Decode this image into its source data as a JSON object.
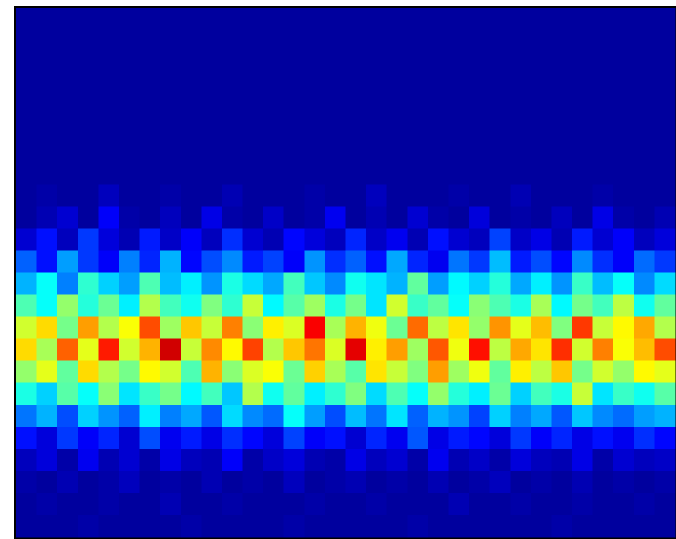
{
  "chart_data": {
    "type": "heatmap",
    "colormap": "jet",
    "zlim": [
      0,
      100
    ],
    "z": [
      [
        3,
        3,
        3,
        3,
        3,
        3,
        3,
        3,
        3,
        3,
        3,
        3,
        3,
        3,
        3,
        3,
        3,
        3,
        3,
        3,
        3,
        3,
        3,
        3,
        3,
        3,
        3,
        3,
        3,
        3,
        3,
        3
      ],
      [
        3,
        3,
        3,
        3,
        3,
        3,
        3,
        3,
        3,
        3,
        3,
        3,
        3,
        3,
        3,
        3,
        3,
        3,
        3,
        3,
        3,
        3,
        3,
        3,
        3,
        3,
        3,
        3,
        3,
        3,
        3,
        3
      ],
      [
        3,
        3,
        3,
        3,
        3,
        3,
        3,
        3,
        3,
        3,
        3,
        3,
        3,
        3,
        3,
        3,
        3,
        3,
        3,
        3,
        3,
        3,
        3,
        3,
        3,
        3,
        3,
        3,
        3,
        3,
        3,
        3
      ],
      [
        3,
        3,
        3,
        3,
        3,
        3,
        3,
        3,
        3,
        3,
        3,
        3,
        3,
        3,
        3,
        3,
        3,
        3,
        3,
        3,
        3,
        3,
        3,
        3,
        3,
        3,
        3,
        3,
        3,
        3,
        3,
        3
      ],
      [
        3,
        3,
        3,
        3,
        3,
        3,
        3,
        3,
        3,
        3,
        3,
        3,
        3,
        3,
        3,
        3,
        3,
        3,
        3,
        3,
        3,
        3,
        3,
        3,
        3,
        3,
        3,
        3,
        3,
        3,
        3,
        3
      ],
      [
        3,
        3,
        3,
        3,
        3,
        3,
        3,
        3,
        3,
        3,
        3,
        3,
        3,
        3,
        3,
        3,
        3,
        3,
        3,
        3,
        3,
        3,
        3,
        3,
        3,
        3,
        3,
        3,
        3,
        3,
        3,
        3
      ],
      [
        3,
        3,
        3,
        3,
        3,
        3,
        3,
        3,
        3,
        3,
        3,
        3,
        3,
        3,
        3,
        3,
        3,
        3,
        3,
        3,
        3,
        3,
        3,
        3,
        3,
        3,
        3,
        3,
        3,
        3,
        3,
        3
      ],
      [
        3,
        3,
        3,
        3,
        3,
        3,
        3,
        3,
        3,
        3,
        3,
        3,
        3,
        3,
        3,
        3,
        3,
        3,
        3,
        3,
        3,
        3,
        3,
        3,
        3,
        3,
        3,
        3,
        3,
        3,
        3,
        3
      ],
      [
        3,
        4,
        3,
        3,
        6,
        3,
        3,
        4,
        3,
        3,
        5,
        3,
        3,
        3,
        4,
        3,
        3,
        6,
        3,
        3,
        3,
        4,
        3,
        3,
        5,
        3,
        3,
        3,
        4,
        3,
        3,
        3
      ],
      [
        3,
        5,
        8,
        3,
        12,
        4,
        3,
        6,
        3,
        10,
        4,
        3,
        7,
        3,
        4,
        11,
        3,
        5,
        3,
        8,
        4,
        3,
        9,
        3,
        4,
        3,
        6,
        3,
        10,
        4,
        3,
        5
      ],
      [
        8,
        14,
        6,
        18,
        9,
        5,
        15,
        7,
        12,
        6,
        17,
        8,
        5,
        13,
        9,
        6,
        16,
        7,
        11,
        5,
        14,
        8,
        6,
        19,
        7,
        10,
        5,
        15,
        8,
        12,
        6,
        9
      ],
      [
        22,
        14,
        28,
        18,
        12,
        25,
        16,
        30,
        13,
        20,
        26,
        15,
        19,
        12,
        27,
        17,
        22,
        14,
        29,
        16,
        11,
        24,
        18,
        31,
        15,
        20,
        13,
        26,
        17,
        12,
        23,
        18
      ],
      [
        30,
        38,
        25,
        42,
        33,
        28,
        45,
        31,
        36,
        27,
        40,
        34,
        29,
        44,
        32,
        26,
        39,
        35,
        30,
        47,
        28,
        37,
        33,
        41,
        29,
        36,
        27,
        43,
        31,
        38,
        26,
        34
      ],
      [
        45,
        38,
        52,
        41,
        48,
        36,
        55,
        44,
        39,
        50,
        42,
        57,
        37,
        46,
        53,
        40,
        49,
        35,
        58,
        43,
        47,
        38,
        51,
        45,
        40,
        54,
        37,
        49,
        44,
        56,
        39,
        47
      ],
      [
        58,
        66,
        49,
        72,
        55,
        62,
        80,
        53,
        68,
        57,
        75,
        51,
        64,
        59,
        88,
        54,
        70,
        61,
        48,
        77,
        56,
        65,
        52,
        73,
        60,
        69,
        50,
        82,
        57,
        63,
        71,
        55
      ],
      [
        66,
        54,
        78,
        60,
        85,
        58,
        70,
        92,
        57,
        74,
        63,
        81,
        55,
        68,
        76,
        59,
        90,
        64,
        72,
        53,
        79,
        61,
        86,
        56,
        71,
        65,
        83,
        58,
        75,
        62,
        69,
        80
      ],
      [
        52,
        60,
        47,
        66,
        55,
        49,
        63,
        58,
        45,
        70,
        51,
        59,
        62,
        48,
        67,
        54,
        46,
        65,
        57,
        50,
        72,
        53,
        61,
        47,
        64,
        56,
        68,
        49,
        58,
        52,
        63,
        60
      ],
      [
        40,
        33,
        46,
        38,
        51,
        35,
        43,
        49,
        37,
        44,
        32,
        55,
        39,
        47,
        36,
        42,
        50,
        34,
        45,
        38,
        52,
        41,
        36,
        48,
        33,
        44,
        40,
        57,
        35,
        43,
        39,
        46
      ],
      [
        24,
        30,
        20,
        33,
        27,
        22,
        36,
        25,
        29,
        21,
        34,
        26,
        23,
        38,
        28,
        20,
        31,
        24,
        35,
        22,
        30,
        27,
        19,
        33,
        25,
        29,
        21,
        32,
        26,
        23,
        28,
        30
      ],
      [
        14,
        9,
        18,
        12,
        16,
        8,
        20,
        11,
        15,
        10,
        17,
        13,
        9,
        19,
        12,
        14,
        8,
        16,
        11,
        21,
        10,
        15,
        13,
        9,
        18,
        12,
        16,
        10,
        14,
        11,
        17,
        13
      ],
      [
        6,
        9,
        4,
        11,
        5,
        8,
        4,
        10,
        6,
        5,
        12,
        4,
        7,
        9,
        5,
        4,
        10,
        6,
        8,
        4,
        11,
        5,
        7,
        4,
        9,
        6,
        5,
        10,
        4,
        8,
        6,
        7
      ],
      [
        4,
        3,
        5,
        3,
        4,
        6,
        3,
        4,
        3,
        5,
        3,
        4,
        3,
        6,
        3,
        4,
        5,
        3,
        4,
        3,
        5,
        3,
        4,
        6,
        3,
        4,
        3,
        5,
        3,
        4,
        3,
        4
      ],
      [
        3,
        4,
        3,
        3,
        4,
        3,
        3,
        5,
        3,
        3,
        4,
        3,
        3,
        3,
        4,
        3,
        3,
        4,
        3,
        3,
        3,
        5,
        3,
        3,
        4,
        3,
        3,
        4,
        3,
        3,
        4,
        3
      ],
      [
        3,
        3,
        3,
        4,
        3,
        3,
        3,
        3,
        4,
        3,
        3,
        3,
        3,
        4,
        3,
        3,
        3,
        3,
        3,
        4,
        3,
        3,
        3,
        3,
        3,
        3,
        4,
        3,
        3,
        3,
        3,
        3
      ]
    ]
  }
}
